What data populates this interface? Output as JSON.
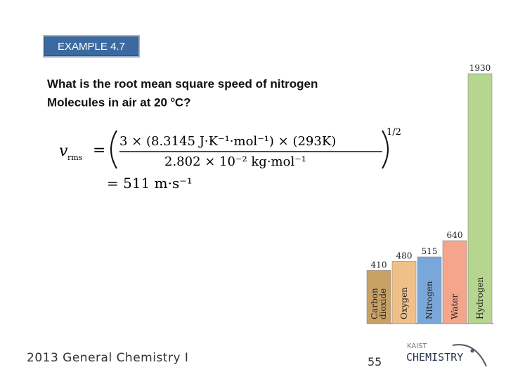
{
  "slide": {
    "badge": "EXAMPLE 4.7",
    "question_line1": "What is the root mean square speed of nitrogen",
    "question_line2_pre": "Molecules in air at 20 ",
    "question_sup": "o",
    "question_line2_post": "C?",
    "footer": "2013 General Chemistry I",
    "page_number": "55",
    "logo_top": "KAIST",
    "logo_bottom": "CHEMISTRY"
  },
  "equation": {
    "lhs": "v",
    "lhs_sub": "rms",
    "numerator": "3 × (8.3145 J·K⁻¹·mol⁻¹) × (293K)",
    "denominator": "2.802 × 10⁻² kg·mol⁻¹",
    "exponent": "1/2",
    "result": "= 511 m·s⁻¹"
  },
  "chart_data": {
    "type": "bar",
    "categories": [
      "Carbon dioxide",
      "Oxygen",
      "Nitrogen",
      "Water",
      "Hydrogen"
    ],
    "category_lines": [
      [
        "Carbon",
        "dioxide"
      ],
      [
        "Oxygen"
      ],
      [
        "Nitrogen"
      ],
      [
        "Water"
      ],
      [
        "Hydrogen"
      ]
    ],
    "values": [
      410,
      480,
      515,
      640,
      1930
    ],
    "value_labels": [
      "410",
      "480",
      "515",
      "640",
      "1930"
    ],
    "colors": [
      "#c8a165",
      "#f0c08a",
      "#7aa7d9",
      "#f4a58b",
      "#b6d58f"
    ],
    "ylim": [
      0,
      1930
    ],
    "title": "",
    "xlabel": "",
    "ylabel": ""
  }
}
